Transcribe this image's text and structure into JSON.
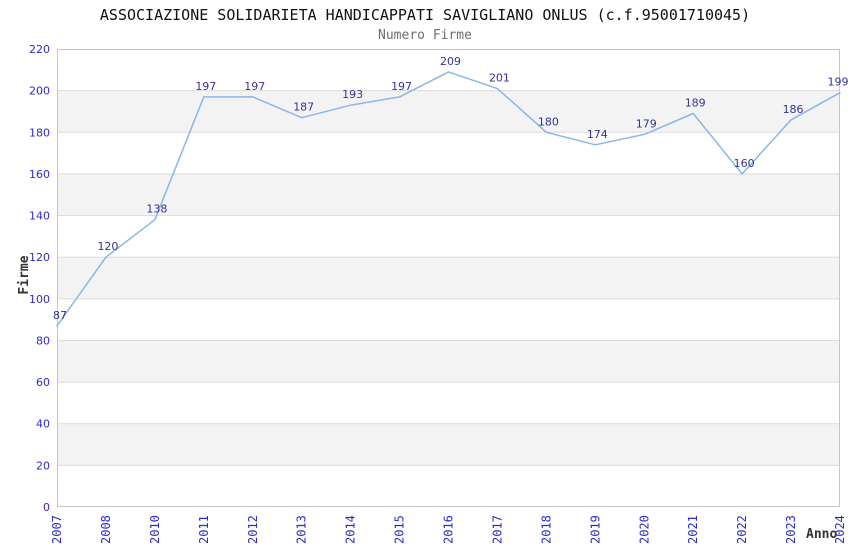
{
  "header": {
    "title": "ASSOCIAZIONE SOLIDARIETA HANDICAPPATI SAVIGLIANO ONLUS (c.f.95001710045)",
    "subtitle": "Numero Firme"
  },
  "chart_data": {
    "type": "line",
    "title": "ASSOCIAZIONE SOLIDARIETA HANDICAPPATI SAVIGLIANO ONLUS (c.f.95001710045)",
    "subtitle": "Numero Firme",
    "xlabel": "Anno",
    "ylabel": "Firme",
    "categories": [
      "2007",
      "2008",
      "2010",
      "2011",
      "2012",
      "2013",
      "2014",
      "2015",
      "2016",
      "2017",
      "2018",
      "2019",
      "2020",
      "2021",
      "2022",
      "2023",
      "2024"
    ],
    "values": [
      87,
      120,
      138,
      197,
      197,
      187,
      193,
      197,
      209,
      201,
      180,
      174,
      179,
      189,
      160,
      186,
      199
    ],
    "ylim": [
      0,
      220
    ],
    "y_ticks": [
      0,
      20,
      40,
      60,
      80,
      100,
      120,
      140,
      160,
      180,
      200,
      220
    ],
    "grid": "alternating horizontal bands every 20 units, gray bands at 20-40, 60-80, 100-120, 140-160, 180-200",
    "legend_position": "none",
    "data_labels_visible": true,
    "x_tick_rotation_deg": -90,
    "colors": {
      "line": "#8ab6e8",
      "data_label": "#333399",
      "tick_label": "#2b2bcc",
      "band_fill": "#f3f3f3",
      "band_border": "#dcdcdc",
      "plot_border": "#c6c6c6",
      "title": "#111111",
      "subtitle": "#6e6e6e",
      "axis_title": "#333333",
      "background": "#ffffff"
    }
  }
}
